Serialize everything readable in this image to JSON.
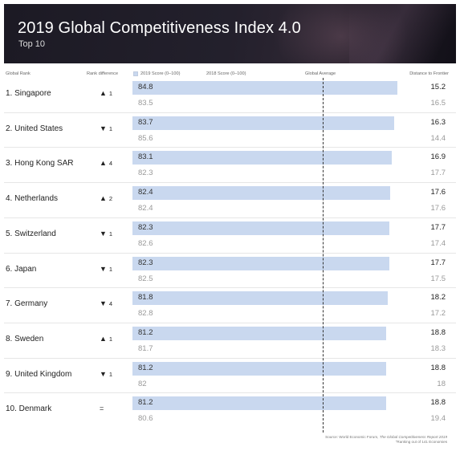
{
  "banner": {
    "title": "2019 Global Competitiveness Index 4.0",
    "subtitle": "Top 10"
  },
  "headers": {
    "rank": "Global Rank",
    "rank_difference": "Rank difference",
    "score_2019": "2019 Score (0–100)",
    "score_2018": "2018 Score (0–100)",
    "global_average": "Global Average",
    "distance_to_frontier": "Distance to Frontier"
  },
  "colors": {
    "bar_2019": "#c9d8ef",
    "banner_bg": "#1c1a24",
    "text_2018": "#999999"
  },
  "chart_data": {
    "type": "bar",
    "title": "2019 Global Competitiveness Index 4.0",
    "subtitle": "Top 10",
    "x_axis_range": [
      0,
      100
    ],
    "categories": [
      "1. Singapore",
      "2. United States",
      "3. Hong Kong SAR",
      "4. Netherlands",
      "5. Switzerland",
      "6. Japan",
      "7. Germany",
      "8. Sweden",
      "9. United Kingdom",
      "10. Denmark"
    ],
    "series": [
      {
        "name": "2019 Score (0–100)",
        "values": [
          84.8,
          83.7,
          83.1,
          82.4,
          82.3,
          82.3,
          81.8,
          81.2,
          81.2,
          81.2
        ]
      },
      {
        "name": "2018 Score (0–100)",
        "values": [
          83.5,
          85.6,
          82.3,
          82.4,
          82.6,
          82.5,
          82.8,
          81.7,
          82,
          80.6
        ]
      }
    ],
    "rows": [
      {
        "country": "1. Singapore",
        "rank_dir": "▲",
        "rank_change": "1",
        "score_2019": "84.8",
        "score_2018": "83.5",
        "dist_2019": "15.2",
        "dist_2018": "16.5"
      },
      {
        "country": "2. United States",
        "rank_dir": "▼",
        "rank_change": "1",
        "score_2019": "83.7",
        "score_2018": "85.6",
        "dist_2019": "16.3",
        "dist_2018": "14.4"
      },
      {
        "country": "3. Hong Kong SAR",
        "rank_dir": "▲",
        "rank_change": "4",
        "score_2019": "83.1",
        "score_2018": "82.3",
        "dist_2019": "16.9",
        "dist_2018": "17.7"
      },
      {
        "country": "4. Netherlands",
        "rank_dir": "▲",
        "rank_change": "2",
        "score_2019": "82.4",
        "score_2018": "82.4",
        "dist_2019": "17.6",
        "dist_2018": "17.6"
      },
      {
        "country": "5. Switzerland",
        "rank_dir": "▼",
        "rank_change": "1",
        "score_2019": "82.3",
        "score_2018": "82.6",
        "dist_2019": "17.7",
        "dist_2018": "17.4"
      },
      {
        "country": "6. Japan",
        "rank_dir": "▼",
        "rank_change": "1",
        "score_2019": "82.3",
        "score_2018": "82.5",
        "dist_2019": "17.7",
        "dist_2018": "17.5"
      },
      {
        "country": "7. Germany",
        "rank_dir": "▼",
        "rank_change": "4",
        "score_2019": "81.8",
        "score_2018": "82.8",
        "dist_2019": "18.2",
        "dist_2018": "17.2"
      },
      {
        "country": "8. Sweden",
        "rank_dir": "▲",
        "rank_change": "1",
        "score_2019": "81.2",
        "score_2018": "81.7",
        "dist_2019": "18.8",
        "dist_2018": "18.3"
      },
      {
        "country": "9. United Kingdom",
        "rank_dir": "▼",
        "rank_change": "1",
        "score_2019": "81.2",
        "score_2018": "82",
        "dist_2019": "18.8",
        "dist_2018": "18"
      },
      {
        "country": "10. Denmark",
        "rank_dir": "=",
        "rank_change": "",
        "score_2019": "81.2",
        "score_2018": "80.6",
        "dist_2019": "18.8",
        "dist_2018": "19.4"
      }
    ]
  },
  "source": {
    "line1_prefix": "Source: World Economic Forum,",
    "line1_italic": "The Global Competitiveness Report 2019",
    "line2": "\"Ranking out of 141 Economies"
  }
}
